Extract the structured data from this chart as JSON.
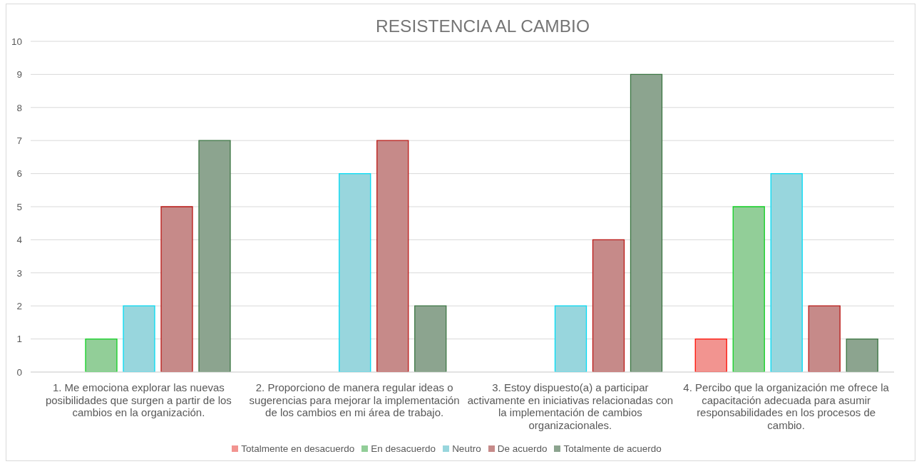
{
  "chart_data": {
    "type": "bar",
    "title": "RESISTENCIA AL CAMBIO",
    "categories": [
      "1. Me emociona explorar las nuevas posibilidades que surgen a partir de los cambios en la organización.",
      "2. Proporciono de manera regular ideas o sugerencias para mejorar la implementación de los cambios en mi área de trabajo.",
      "3. Estoy dispuesto(a) a participar activamente en iniciativas relacionadas con la implementación de cambios organizacionales.",
      "4. Percibo que la organización me ofrece la capacitación adecuada para asumir responsabilidades en los procesos de cambio."
    ],
    "series": [
      {
        "name": "Totalmente en desacuerdo",
        "color": "#f29490",
        "values": [
          0,
          0,
          0,
          1
        ]
      },
      {
        "name": "En desacuerdo",
        "color": "#92ce98",
        "values": [
          1,
          0,
          0,
          5
        ]
      },
      {
        "name": "Neutro",
        "color": "#98d6dd",
        "values": [
          2,
          6,
          2,
          6
        ]
      },
      {
        "name": "De acuerdo",
        "color": "#c68a89",
        "values": [
          5,
          7,
          4,
          2
        ]
      },
      {
        "name": "Totalmente de acuerdo",
        "color": "#8ca48f",
        "values": [
          7,
          2,
          9,
          1
        ]
      }
    ],
    "ylim": [
      0,
      10
    ],
    "yticks": [
      0,
      1,
      2,
      3,
      4,
      5,
      6,
      7,
      8,
      9,
      10
    ],
    "grid": "y",
    "legend": "bottom"
  }
}
